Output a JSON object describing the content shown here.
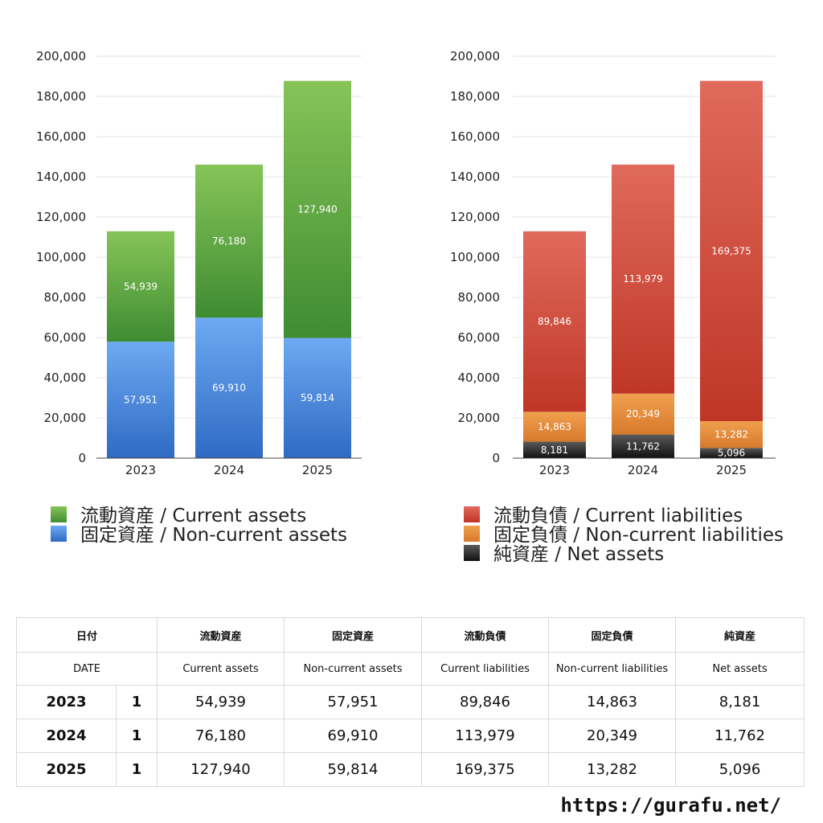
{
  "chart_data": [
    {
      "type": "bar",
      "stacked": true,
      "categories": [
        "2023",
        "2024",
        "2025"
      ],
      "ylim": [
        0,
        200000
      ],
      "yticks": [
        "0",
        "20,000",
        "40,000",
        "60,000",
        "80,000",
        "100,000",
        "120,000",
        "140,000",
        "160,000",
        "180,000",
        "200,000"
      ],
      "grid": true,
      "legend_position": "bottom",
      "series": [
        {
          "name": "固定資産 / Non-current assets",
          "values": [
            57951,
            69910,
            59814
          ],
          "labels": [
            "57,951",
            "69,910",
            "59,814"
          ],
          "color_top": "#6ea9f2",
          "color_bottom": "#2f6ac4"
        },
        {
          "name": "流動資産 / Current assets",
          "values": [
            54939,
            76180,
            127940
          ],
          "labels": [
            "54,939",
            "76,180",
            "127,940"
          ],
          "color_top": "#86c458",
          "color_bottom": "#3f8c32"
        }
      ],
      "legend_order": [
        1,
        0
      ]
    },
    {
      "type": "bar",
      "stacked": true,
      "categories": [
        "2023",
        "2024",
        "2025"
      ],
      "ylim": [
        0,
        200000
      ],
      "yticks": [
        "0",
        "20,000",
        "40,000",
        "60,000",
        "80,000",
        "100,000",
        "120,000",
        "140,000",
        "160,000",
        "180,000",
        "200,000"
      ],
      "grid": true,
      "legend_position": "bottom",
      "series": [
        {
          "name": "純資産 / Net assets",
          "values": [
            8181,
            11762,
            5096
          ],
          "labels": [
            "8,181",
            "11,762",
            "5,096"
          ],
          "color_top": "#5a5a5a",
          "color_bottom": "#111111"
        },
        {
          "name": "固定負債 / Non-current liabilities",
          "values": [
            14863,
            20349,
            13282
          ],
          "labels": [
            "14,863",
            "20,349",
            "13,282"
          ],
          "color_top": "#f0a050",
          "color_bottom": "#d8792a"
        },
        {
          "name": "流動負債 / Current liabilities",
          "values": [
            89846,
            113979,
            169375
          ],
          "labels": [
            "89,846",
            "113,979",
            "169,375"
          ],
          "color_top": "#e06a5c",
          "color_bottom": "#bf3626"
        }
      ],
      "legend_order": [
        2,
        1,
        0
      ]
    }
  ],
  "table": {
    "header_ja": [
      "日付",
      "流動資産",
      "固定資産",
      "流動負債",
      "固定負債",
      "純資産"
    ],
    "header_en": [
      "DATE",
      "Current assets",
      "Non-current assets",
      "Current liabilities",
      "Non-current liabilities",
      "Net assets"
    ],
    "rows": [
      {
        "year": "2023",
        "count": "1",
        "values": [
          "54,939",
          "57,951",
          "89,846",
          "14,863",
          "8,181"
        ]
      },
      {
        "year": "2024",
        "count": "1",
        "values": [
          "76,180",
          "69,910",
          "113,979",
          "20,349",
          "11,762"
        ]
      },
      {
        "year": "2025",
        "count": "1",
        "values": [
          "127,940",
          "59,814",
          "169,375",
          "13,282",
          "5,096"
        ]
      }
    ]
  },
  "footer": {
    "url": "https://gurafu.net/"
  }
}
